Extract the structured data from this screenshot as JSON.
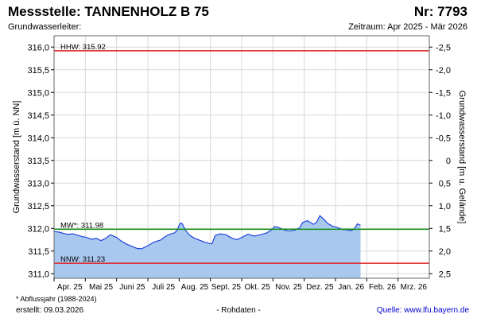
{
  "header": {
    "station_label": "Messstelle: TANNENHOLZ B 75",
    "number_label": "Nr: 7793",
    "aquifer_label": "Grundwasserleiter:",
    "period_label": "Zeitraum: Apr 2025 - Mär 2026"
  },
  "footer": {
    "footnote": "* Abflussjahr (1988-2024)",
    "created": "erstellt:  09.03.2026",
    "raw_data": "- Rohdaten -",
    "source": "Quelle: www.lfu.bayern.de"
  },
  "colors": {
    "area_fill": "#a8c8f0",
    "line": "#2244dd",
    "hhw_line": "#e02020",
    "nnw_line": "#e02020",
    "mw_line": "#109010"
  },
  "chart_data": {
    "type": "area",
    "ylabel": "Grundwasserstand [m ü. NN]",
    "y2label": "Grundwasserstand [m u. Gelände]",
    "ylim": [
      310.9,
      316.25
    ],
    "y_ticks": [
      "316,0",
      "315,5",
      "315,0",
      "314,5",
      "314,0",
      "313,5",
      "313,0",
      "312,5",
      "312,0",
      "311,5",
      "311,0"
    ],
    "y_tick_values": [
      316.0,
      315.5,
      315.0,
      314.5,
      314.0,
      313.5,
      313.0,
      312.5,
      312.0,
      311.5,
      311.0
    ],
    "y2_ticks": [
      "-2,5",
      "-2,0",
      "-1,5",
      "-1,0",
      "-0,5",
      "0",
      "0,5",
      "1,0",
      "1,5",
      "2,0",
      "2,5"
    ],
    "y2_tick_values": [
      -2.5,
      -2.0,
      -1.5,
      -1.0,
      -0.5,
      0.0,
      0.5,
      1.0,
      1.5,
      2.0,
      2.5
    ],
    "y2_zero_level": 313.5,
    "x_months": [
      "Apr. 25",
      "Mai 25",
      "Juni 25",
      "Juli 25",
      "Aug. 25",
      "Sept. 25",
      "Okt. 25",
      "Nov. 25",
      "Dez. 25",
      "Jan. 26",
      "Feb. 26",
      "Mrz. 26"
    ],
    "x_unit": "month index from Apr. 25",
    "xlim": [
      0,
      12
    ],
    "grid": true,
    "series": [
      {
        "x": [
          0.0,
          0.15,
          0.3,
          0.45,
          0.6,
          0.75,
          0.9,
          1.05,
          1.2,
          1.35,
          1.5,
          1.65,
          1.8,
          2.0,
          2.15,
          2.3,
          2.5,
          2.65,
          2.8,
          3.0,
          3.2,
          3.4,
          3.55,
          3.7,
          3.85,
          3.95,
          4.0,
          4.05,
          4.1,
          4.2,
          4.35,
          4.5,
          4.65,
          4.8,
          4.95,
          5.05,
          5.15,
          5.3,
          5.5,
          5.7,
          5.85,
          6.0,
          6.2,
          6.4,
          6.6,
          6.8,
          7.0,
          7.05,
          7.15,
          7.3,
          7.5,
          7.7,
          7.85,
          7.95,
          8.1,
          8.2,
          8.3,
          8.4,
          8.5,
          8.6,
          8.75,
          8.9,
          9.05,
          9.2,
          9.35,
          9.5,
          9.6,
          9.7,
          9.8
        ],
        "y": [
          311.93,
          311.92,
          311.89,
          311.87,
          311.88,
          311.85,
          311.82,
          311.8,
          311.76,
          311.78,
          311.73,
          311.78,
          311.86,
          311.8,
          311.72,
          311.66,
          311.6,
          311.56,
          311.55,
          311.62,
          311.7,
          311.74,
          311.82,
          311.87,
          311.9,
          311.97,
          312.07,
          312.12,
          312.1,
          311.96,
          311.84,
          311.78,
          311.74,
          311.7,
          311.67,
          311.66,
          311.84,
          311.88,
          311.86,
          311.78,
          311.75,
          311.8,
          311.87,
          311.83,
          311.86,
          311.9,
          311.99,
          312.04,
          312.03,
          311.98,
          311.94,
          311.96,
          312.01,
          312.13,
          312.17,
          312.13,
          312.09,
          312.14,
          312.28,
          312.22,
          312.11,
          312.05,
          312.02,
          311.98,
          311.97,
          311.95,
          311.99,
          312.1,
          312.07
        ]
      }
    ],
    "reference_lines": [
      {
        "label": "HHW: 315.92",
        "value": 315.92
      },
      {
        "label": "MW*: 311.98",
        "value": 311.98
      },
      {
        "label": "NNW: 311.23",
        "value": 311.23
      }
    ]
  }
}
